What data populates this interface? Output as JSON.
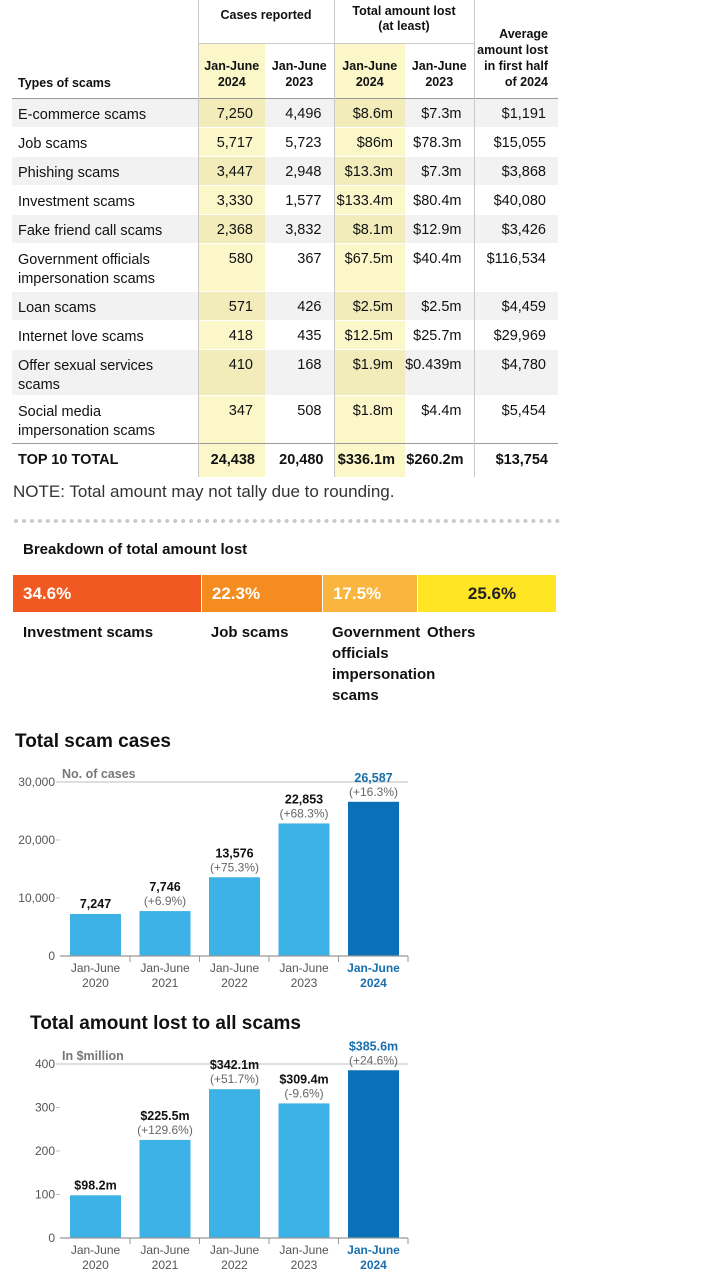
{
  "table": {
    "types_header": "Types of scams",
    "group_cases": "Cases reported",
    "group_amount_line1": "Total amount lost",
    "group_amount_line2": "(at least)",
    "avg_header": [
      "Average",
      "amount lost",
      "in first half",
      "of 2024"
    ],
    "period_2024": [
      "Jan-June",
      "2024"
    ],
    "period_2023": [
      "Jan-June",
      "2023"
    ],
    "rows": [
      {
        "name": [
          "E-commerce scams"
        ],
        "cases_2024": "7,250",
        "cases_2023": "4,496",
        "lost_2024": "$8.6m",
        "lost_2023": "$7.3m",
        "avg": "$1,191"
      },
      {
        "name": [
          "Job scams"
        ],
        "cases_2024": "5,717",
        "cases_2023": "5,723",
        "lost_2024": "$86m",
        "lost_2023": "$78.3m",
        "avg": "$15,055"
      },
      {
        "name": [
          "Phishing scams"
        ],
        "cases_2024": "3,447",
        "cases_2023": "2,948",
        "lost_2024": "$13.3m",
        "lost_2023": "$7.3m",
        "avg": "$3,868"
      },
      {
        "name": [
          "Investment scams"
        ],
        "cases_2024": "3,330",
        "cases_2023": "1,577",
        "lost_2024": "$133.4m",
        "lost_2023": "$80.4m",
        "avg": "$40,080"
      },
      {
        "name": [
          "Fake friend call scams"
        ],
        "cases_2024": "2,368",
        "cases_2023": "3,832",
        "lost_2024": "$8.1m",
        "lost_2023": "$12.9m",
        "avg": "$3,426"
      },
      {
        "name": [
          "Government officials",
          "impersonation scams"
        ],
        "cases_2024": "580",
        "cases_2023": "367",
        "lost_2024": "$67.5m",
        "lost_2023": "$40.4m",
        "avg": "$116,534"
      },
      {
        "name": [
          "Loan scams"
        ],
        "cases_2024": "571",
        "cases_2023": "426",
        "lost_2024": "$2.5m",
        "lost_2023": "$2.5m",
        "avg": "$4,459"
      },
      {
        "name": [
          "Internet love scams"
        ],
        "cases_2024": "418",
        "cases_2023": "435",
        "lost_2024": "$12.5m",
        "lost_2023": "$25.7m",
        "avg": "$29,969"
      },
      {
        "name": [
          "Offer sexual services scams"
        ],
        "cases_2024": "410",
        "cases_2023": "168",
        "lost_2024": "$1.9m",
        "lost_2023": "$0.439m",
        "avg": "$4,780"
      },
      {
        "name": [
          "Social media",
          "impersonation scams"
        ],
        "cases_2024": "347",
        "cases_2023": "508",
        "lost_2024": "$1.8m",
        "lost_2023": "$4.4m",
        "avg": "$5,454"
      }
    ],
    "total": {
      "name": "TOP 10 TOTAL",
      "cases_2024": "24,438",
      "cases_2023": "20,480",
      "lost_2024": "$336.1m",
      "lost_2023": "$260.2m",
      "avg": "$13,754"
    }
  },
  "note": "NOTE: Total amount may not tally due to rounding.",
  "breakdown": {
    "title": "Breakdown of total amount lost",
    "segments": [
      {
        "label": "34.6%",
        "share": 34.6,
        "color": "#f05a22",
        "name": [
          "Investment scams"
        ]
      },
      {
        "label": "22.3%",
        "share": 22.3,
        "color": "#f58c1f",
        "name": [
          "Job scams"
        ]
      },
      {
        "label": "17.5%",
        "share": 17.5,
        "color": "#f9b53d",
        "name": [
          "Government",
          "officials",
          "impersonation",
          "scams"
        ]
      },
      {
        "label": "25.6%",
        "share": 25.6,
        "color": "#ffe524",
        "name": [
          "Others"
        ]
      }
    ]
  },
  "colors": {
    "bar": "#3cb2e6",
    "bar_highlight": "#0a71b9",
    "highlight_text": "#1a6fae",
    "axis": "#999999",
    "change_text": "#666666"
  },
  "chart_data": [
    {
      "type": "bar",
      "title": "Total scam cases",
      "ylabel": "No. of cases",
      "categories": [
        [
          "Jan-June",
          "2020"
        ],
        [
          "Jan-June",
          "2021"
        ],
        [
          "Jan-June",
          "2022"
        ],
        [
          "Jan-June",
          "2023"
        ],
        [
          "Jan-June",
          "2024"
        ]
      ],
      "values": [
        7247,
        7746,
        13576,
        22853,
        26587
      ],
      "value_labels": [
        "7,247",
        "7,746",
        "13,576",
        "22,853",
        "26,587"
      ],
      "change_labels": [
        "",
        "(+6.9%)",
        "(+75.3%)",
        "(+68.3%)",
        "(+16.3%)"
      ],
      "ylim": [
        0,
        30000
      ],
      "yticks": [
        0,
        10000,
        20000,
        30000
      ],
      "ytick_labels": [
        "0",
        "10,000",
        "20,000",
        "30,000"
      ],
      "highlight_index": 4
    },
    {
      "type": "bar",
      "title": "Total amount lost to all scams",
      "ylabel": "In $million",
      "categories": [
        [
          "Jan-June",
          "2020"
        ],
        [
          "Jan-June",
          "2021"
        ],
        [
          "Jan-June",
          "2022"
        ],
        [
          "Jan-June",
          "2023"
        ],
        [
          "Jan-June",
          "2024"
        ]
      ],
      "values": [
        98.2,
        225.5,
        342.1,
        309.4,
        385.6
      ],
      "value_labels": [
        "$98.2m",
        "$225.5m",
        "$342.1m",
        "$309.4m",
        "$385.6m"
      ],
      "change_labels": [
        "",
        "(+129.6%)",
        "(+51.7%)",
        "(-9.6%)",
        "(+24.6%)"
      ],
      "ylim": [
        0,
        400
      ],
      "yticks": [
        0,
        100,
        200,
        300,
        400
      ],
      "ytick_labels": [
        "0",
        "100",
        "200",
        "300",
        "400"
      ],
      "highlight_index": 4
    }
  ]
}
